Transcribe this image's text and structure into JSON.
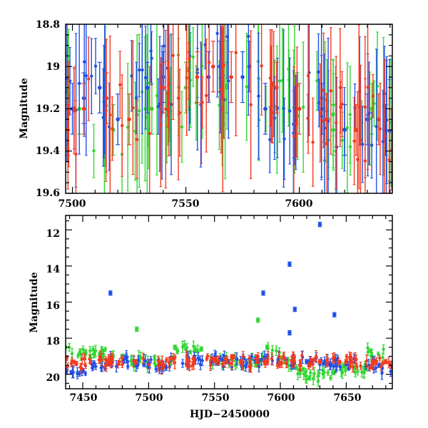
{
  "colors": {
    "blue": "#1f4fe6",
    "red": "#f23a1f",
    "green": "#32d632",
    "axis": "#000000"
  },
  "chart_data": [
    {
      "type": "scatter",
      "title": "",
      "xlabel": "",
      "ylabel": "Magnitude",
      "xlim": [
        7497,
        7641
      ],
      "ylim": [
        19.6,
        18.8
      ],
      "y_inverted": true,
      "xticks": [
        "7500",
        "7550",
        "7600"
      ],
      "yticks": [
        "18.8",
        "19",
        "19.2",
        "19.4",
        "19.6"
      ],
      "grid": false,
      "series": [
        {
          "color": "blue",
          "points": [
            [
              7500,
              19.2
            ],
            [
              7505,
              19.15
            ],
            [
              7512,
              19.1
            ],
            [
              7520,
              19.25
            ],
            [
              7533,
              19.1
            ],
            [
              7540,
              19.05
            ],
            [
              7560,
              19.05
            ],
            [
              7565,
              19.0
            ],
            [
              7575,
              19.05
            ],
            [
              7578,
              19.0
            ],
            [
              7585,
              19.2
            ],
            [
              7610,
              19.2
            ],
            [
              7620,
              19.3
            ],
            [
              7630,
              19.25
            ],
            [
              7638,
              19.3
            ]
          ]
        },
        {
          "color": "red",
          "points": [
            [
              7498,
              19.3
            ],
            [
              7505,
              19.2
            ],
            [
              7515,
              19.15
            ],
            [
              7525,
              19.25
            ],
            [
              7540,
              19.1
            ],
            [
              7555,
              19.05
            ],
            [
              7562,
              19.0
            ],
            [
              7570,
              19.05
            ],
            [
              7590,
              19.1
            ],
            [
              7600,
              19.2
            ],
            [
              7612,
              19.25
            ],
            [
              7625,
              19.3
            ],
            [
              7635,
              19.25
            ]
          ]
        },
        {
          "color": "green",
          "points": [
            [
              7503,
              19.2
            ],
            [
              7518,
              19.3
            ],
            [
              7535,
              19.2
            ],
            [
              7550,
              19.1
            ],
            [
              7568,
              19.1
            ],
            [
              7598,
              19.15
            ],
            [
              7615,
              19.3
            ],
            [
              7632,
              19.2
            ]
          ]
        }
      ]
    },
    {
      "type": "scatter",
      "title": "",
      "xlabel": "HJD−2450000",
      "ylabel": "Magnitude",
      "xlim": [
        7437,
        7685
      ],
      "ylim": [
        20.8,
        11.2
      ],
      "y_inverted": true,
      "xticks": [
        "7450",
        "7500",
        "7550",
        "7600",
        "7650"
      ],
      "yticks": [
        "12",
        "14",
        "16",
        "18",
        "20"
      ],
      "grid": false,
      "series": [
        {
          "color": "blue",
          "points": [
            [
              7471,
              15.5
            ],
            [
              7587,
              15.5
            ],
            [
              7607,
              13.9
            ],
            [
              7611,
              16.4
            ],
            [
              7630,
              11.7
            ],
            [
              7641,
              16.7
            ],
            [
              7607,
              17.7
            ],
            [
              7450,
              19.8
            ],
            [
              7470,
              19.4
            ],
            [
              7500,
              19.5
            ],
            [
              7530,
              19.2
            ],
            [
              7560,
              19.3
            ],
            [
              7590,
              19.0
            ],
            [
              7620,
              19.3
            ],
            [
              7650,
              19.4
            ],
            [
              7675,
              19.5
            ]
          ]
        },
        {
          "color": "red",
          "points": [
            [
              7445,
              19.4
            ],
            [
              7470,
              19.3
            ],
            [
              7490,
              19.3
            ],
            [
              7510,
              19.4
            ],
            [
              7530,
              19.3
            ],
            [
              7550,
              19.2
            ],
            [
              7570,
              19.3
            ],
            [
              7590,
              19.3
            ],
            [
              7610,
              19.2
            ],
            [
              7630,
              19.3
            ],
            [
              7650,
              19.3
            ],
            [
              7670,
              19.4
            ],
            [
              7680,
              19.3
            ]
          ]
        },
        {
          "color": "green",
          "points": [
            [
              7452,
              18.8
            ],
            [
              7480,
              19.0
            ],
            [
              7491,
              17.5
            ],
            [
              7520,
              18.5
            ],
            [
              7540,
              18.6
            ],
            [
              7583,
              17.0
            ],
            [
              7590,
              18.5
            ],
            [
              7615,
              19.8
            ],
            [
              7622,
              20.2
            ],
            [
              7640,
              19.9
            ],
            [
              7665,
              19.7
            ]
          ]
        }
      ]
    }
  ]
}
